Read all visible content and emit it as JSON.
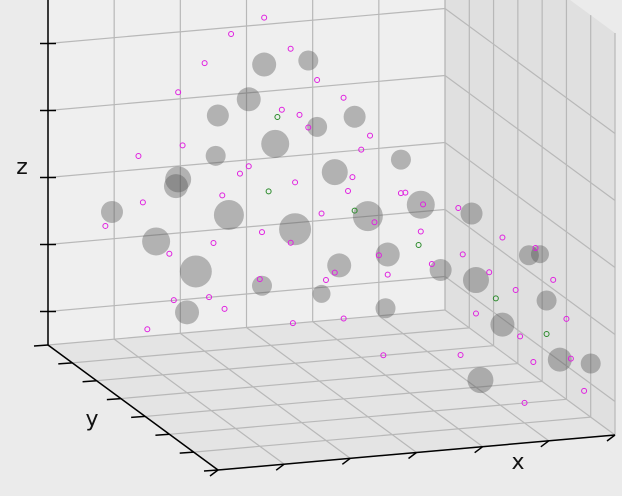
{
  "chart_data": {
    "type": "scatter3d",
    "xlabel": "x",
    "ylabel": "y",
    "zlabel": "z",
    "xlim": [
      0,
      6
    ],
    "ylim": [
      0,
      7
    ],
    "zlim": [
      0,
      6
    ],
    "xticks": [
      0,
      1,
      2,
      3,
      4,
      5,
      6
    ],
    "yticks": [
      0,
      1,
      2,
      3,
      4,
      5,
      6,
      7
    ],
    "zticks": [
      0.5,
      1.5,
      2.5,
      3.5,
      4.5
    ],
    "grid": true,
    "series": [
      {
        "color": "#505050",
        "x": [
          0.9,
          1.2,
          1.5,
          1.8,
          2.0,
          2.3,
          2.5,
          2.7,
          3.0,
          3.2,
          3.4,
          3.6,
          3.9,
          4.1,
          4.4,
          4.6,
          4.9,
          5.2,
          5.0,
          5.4,
          5.7,
          5.9,
          5.6,
          6.0,
          1.0,
          1.6,
          2.2,
          3.3,
          4.0,
          0.6,
          2.9,
          3.7,
          5.3,
          4.7,
          5.8
        ],
        "y": [
          5,
          5,
          5,
          5,
          5,
          5,
          5,
          5,
          5,
          5,
          5,
          5,
          5,
          5,
          5,
          5,
          5,
          5,
          3,
          3,
          2,
          2,
          2,
          1,
          4,
          6,
          6,
          4,
          4,
          6,
          6,
          6,
          4,
          2,
          3
        ],
        "z": [
          2.0,
          2.8,
          1.5,
          3.2,
          2.3,
          4.0,
          1.2,
          3.3,
          2.0,
          4.5,
          1.0,
          2.8,
          3.6,
          2.1,
          1.5,
          2.9,
          2.2,
          1.2,
          1.6,
          0.9,
          1.5,
          0.6,
          2.2,
          0.8,
          1.2,
          2.6,
          3.5,
          1.7,
          1.0,
          2.2,
          4.2,
          3.2,
          2.3,
          0.4,
          1.9
        ],
        "sizes": [
          14,
          12,
          16,
          10,
          15,
          12,
          10,
          14,
          16,
          10,
          9,
          13,
          11,
          15,
          12,
          10,
          14,
          11,
          13,
          12,
          10,
          12,
          9,
          10,
          12,
          13,
          11,
          12,
          10,
          11,
          12,
          10,
          11,
          13,
          10
        ]
      },
      {
        "color": "#e020e0",
        "x": [
          0.5,
          0.7,
          0.8,
          1.0,
          1.1,
          1.3,
          1.4,
          1.6,
          1.7,
          1.9,
          2.0,
          2.1,
          2.3,
          2.4,
          2.5,
          2.6,
          2.8,
          2.9,
          3.0,
          3.1,
          3.2,
          3.3,
          3.4,
          3.5,
          3.6,
          3.7,
          3.8,
          3.9,
          4.0,
          4.1,
          4.2,
          4.3,
          4.4,
          4.5,
          4.6,
          4.7,
          4.8,
          4.9,
          5.0,
          5.1,
          5.2,
          5.3,
          5.4,
          5.5,
          5.6,
          5.7,
          5.8,
          5.9,
          6.0,
          5.9,
          0.4,
          1.2,
          2.2,
          3.0,
          3.6,
          4.4,
          5.0,
          1.8,
          2.7,
          4.2
        ],
        "y": [
          6,
          5,
          4,
          6,
          5,
          5,
          4,
          6,
          5,
          5,
          6,
          4,
          5,
          6,
          5,
          4,
          5,
          6,
          5,
          4,
          5,
          6,
          5,
          4,
          5,
          6,
          5,
          4,
          5,
          6,
          5,
          4,
          5,
          6,
          5,
          4,
          3,
          5,
          3,
          4,
          3,
          2,
          3,
          2,
          3,
          1,
          2,
          1,
          2,
          3,
          4,
          3,
          3,
          3,
          3,
          2,
          1,
          4,
          4,
          3
        ],
        "z": [
          2.0,
          2.6,
          1.4,
          3.0,
          1.8,
          3.4,
          2.2,
          3.9,
          1.1,
          2.6,
          4.3,
          1.6,
          3.0,
          4.7,
          2.0,
          0.9,
          3.8,
          4.9,
          2.7,
          1.5,
          3.5,
          4.4,
          2.2,
          3.0,
          1.3,
          3.9,
          2.5,
          1.8,
          3.1,
          3.6,
          2.0,
          2.7,
          1.2,
          3.0,
          2.4,
          1.6,
          2.0,
          1.8,
          1.1,
          2.4,
          1.7,
          1.0,
          2.2,
          0.6,
          1.4,
          0.9,
          1.8,
          0.4,
          1.2,
          2.0,
          1.0,
          1.5,
          2.4,
          1.2,
          0.6,
          0.8,
          0.3,
          3.2,
          4.0,
          2.8
        ]
      },
      {
        "color": "#2a8a2a",
        "x": [
          2.6,
          3.9,
          4.5,
          5.3,
          5.7,
          3.1
        ],
        "y": [
          5,
          5,
          4,
          3,
          2,
          6
        ],
        "z": [
          2.6,
          2.2,
          1.9,
          1.3,
          1.0,
          3.4
        ]
      }
    ]
  }
}
